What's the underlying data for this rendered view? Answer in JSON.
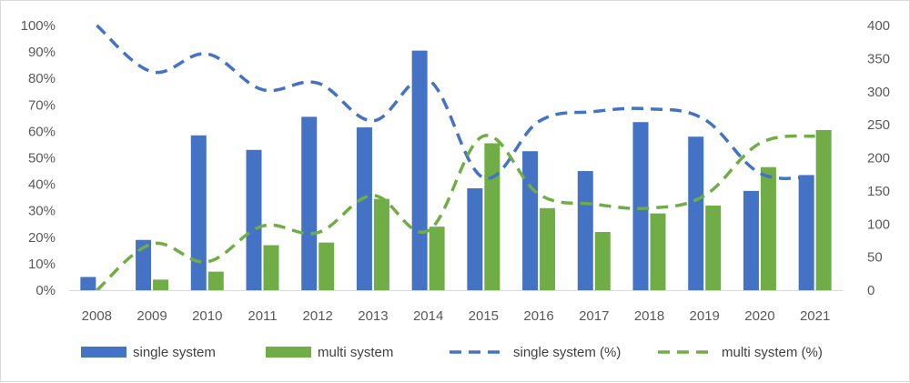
{
  "chart_data": {
    "type": "bar",
    "categories": [
      "2008",
      "2009",
      "2010",
      "2011",
      "2012",
      "2013",
      "2014",
      "2015",
      "2016",
      "2017",
      "2018",
      "2019",
      "2020",
      "2021"
    ],
    "series": [
      {
        "name": "single system",
        "kind": "bar",
        "axis": "left",
        "color": "#4472C4",
        "values": [
          5,
          19,
          58.5,
          53,
          65.5,
          61.5,
          90.5,
          38.5,
          52.5,
          45,
          63.5,
          58,
          37.5,
          43.5
        ]
      },
      {
        "name": "multi system",
        "kind": "bar",
        "axis": "left",
        "color": "#70AD47",
        "values": [
          0,
          4,
          7,
          17,
          18,
          34.5,
          24,
          55.5,
          31,
          22,
          29,
          32,
          46.5,
          60.5
        ]
      },
      {
        "name": "single system (%)",
        "kind": "line",
        "style": "dashed",
        "axis": "right",
        "color": "#4472C4",
        "values": [
          400,
          330,
          357,
          303,
          313,
          256,
          318,
          170,
          255,
          270,
          274,
          258,
          177,
          172
        ]
      },
      {
        "name": "multi system (%)",
        "kind": "line",
        "style": "dashed",
        "axis": "right",
        "color": "#70AD47",
        "values": [
          0,
          70,
          43,
          97,
          87,
          143,
          90,
          233,
          145,
          130,
          124,
          143,
          222,
          233
        ]
      }
    ],
    "left_axis": {
      "min": 0,
      "max": 100,
      "step": 10,
      "ticks": [
        "0%",
        "10%",
        "20%",
        "30%",
        "40%",
        "50%",
        "60%",
        "70%",
        "80%",
        "90%",
        "100%"
      ]
    },
    "right_axis": {
      "min": 0,
      "max": 400,
      "step": 50,
      "ticks": [
        "0",
        "50",
        "100",
        "150",
        "200",
        "250",
        "300",
        "350",
        "400"
      ]
    },
    "grid": false,
    "legend_position": "bottom"
  }
}
